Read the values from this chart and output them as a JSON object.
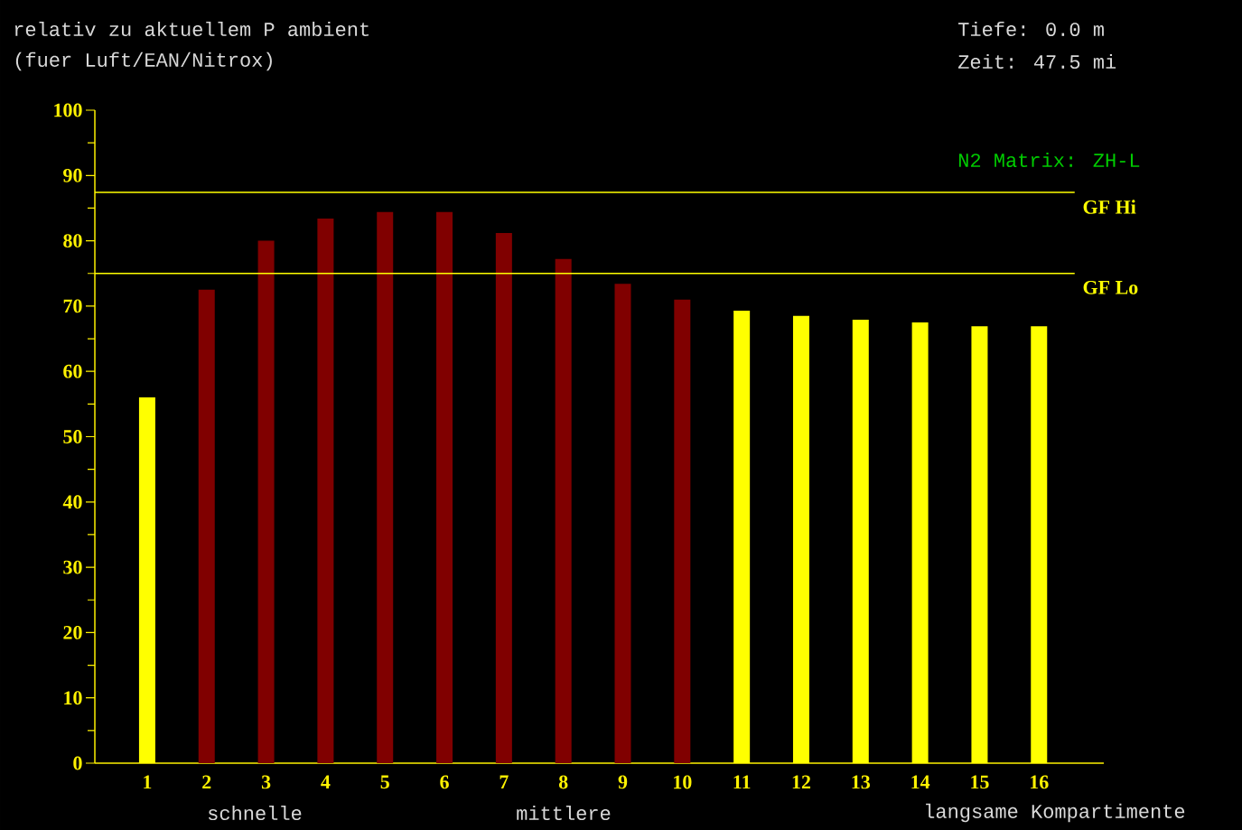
{
  "chart_data": {
    "type": "bar",
    "title": "relativ zu aktuellem P ambient",
    "subtitle": "(fuer Luft/EAN/Nitrox)",
    "categories": [
      "1",
      "2",
      "3",
      "4",
      "5",
      "6",
      "7",
      "8",
      "9",
      "10",
      "11",
      "12",
      "13",
      "14",
      "15",
      "16"
    ],
    "values": [
      56,
      72.5,
      80,
      83.4,
      84.4,
      84.4,
      81.2,
      77.2,
      73.4,
      71,
      69.3,
      68.5,
      67.9,
      67.5,
      66.9,
      66.9
    ],
    "colors": [
      "#ffff00",
      "#800000",
      "#800000",
      "#800000",
      "#800000",
      "#800000",
      "#800000",
      "#800000",
      "#800000",
      "#800000",
      "#ffff00",
      "#ffff00",
      "#ffff00",
      "#ffff00",
      "#ffff00",
      "#ffff00"
    ],
    "ylim": [
      0,
      100
    ],
    "yticks": [
      0,
      10,
      20,
      30,
      40,
      50,
      60,
      70,
      80,
      90,
      100
    ],
    "ref_lines": [
      {
        "axis": "y",
        "value": 87.4,
        "label": "GF Hi",
        "color": "#ffff00"
      },
      {
        "axis": "y",
        "value": 75,
        "label": "GF Lo",
        "color": "#ffff00"
      }
    ],
    "annotations": [
      "Tiefe: 0.0 m",
      "Zeit: 47.5 mi",
      "N2 Matrix: ZH-L",
      "schnelle",
      "mittlere",
      "langsame Kompartimente"
    ]
  }
}
